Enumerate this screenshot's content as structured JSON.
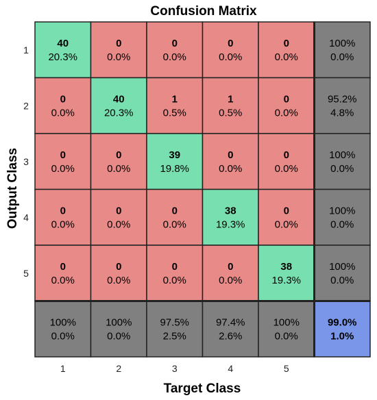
{
  "chart_data": {
    "type": "heatmap",
    "title": "Confusion Matrix",
    "xlabel": "Target Class",
    "ylabel": "Output Class",
    "x_categories": [
      "1",
      "2",
      "3",
      "4",
      "5"
    ],
    "y_categories": [
      "1",
      "2",
      "3",
      "4",
      "5"
    ],
    "counts": [
      [
        40,
        0,
        0,
        0,
        0
      ],
      [
        0,
        40,
        1,
        1,
        0
      ],
      [
        0,
        0,
        39,
        0,
        0
      ],
      [
        0,
        0,
        0,
        38,
        0
      ],
      [
        0,
        0,
        0,
        0,
        38
      ]
    ],
    "percent_labels": [
      [
        "20.3%",
        "0.0%",
        "0.0%",
        "0.0%",
        "0.0%"
      ],
      [
        "0.0%",
        "20.3%",
        "0.5%",
        "0.5%",
        "0.0%"
      ],
      [
        "0.0%",
        "0.0%",
        "19.8%",
        "0.0%",
        "0.0%"
      ],
      [
        "0.0%",
        "0.0%",
        "0.0%",
        "19.3%",
        "0.0%"
      ],
      [
        "0.0%",
        "0.0%",
        "0.0%",
        "0.0%",
        "19.3%"
      ]
    ],
    "row_summary": [
      {
        "correct": "100%",
        "incorrect": "0.0%"
      },
      {
        "correct": "95.2%",
        "incorrect": "4.8%"
      },
      {
        "correct": "100%",
        "incorrect": "0.0%"
      },
      {
        "correct": "100%",
        "incorrect": "0.0%"
      },
      {
        "correct": "100%",
        "incorrect": "0.0%"
      }
    ],
    "col_summary": [
      {
        "correct": "100%",
        "incorrect": "0.0%"
      },
      {
        "correct": "100%",
        "incorrect": "0.0%"
      },
      {
        "correct": "97.5%",
        "incorrect": "2.5%"
      },
      {
        "correct": "97.4%",
        "incorrect": "2.6%"
      },
      {
        "correct": "100%",
        "incorrect": "0.0%"
      }
    ],
    "overall": {
      "correct": "99.0%",
      "incorrect": "1.0%"
    },
    "colors": {
      "diagonal": "#78e0b0",
      "off_diagonal": "#e88a88",
      "summary": "#808080",
      "overall": "#7a96e8",
      "correct_text": "#0e6a0e",
      "incorrect_text": "#7a0e0e",
      "overall_correct_text": "#0a2a8a",
      "overall_incorrect_text": "#6a0a0a",
      "grid_line": "#222222"
    }
  }
}
